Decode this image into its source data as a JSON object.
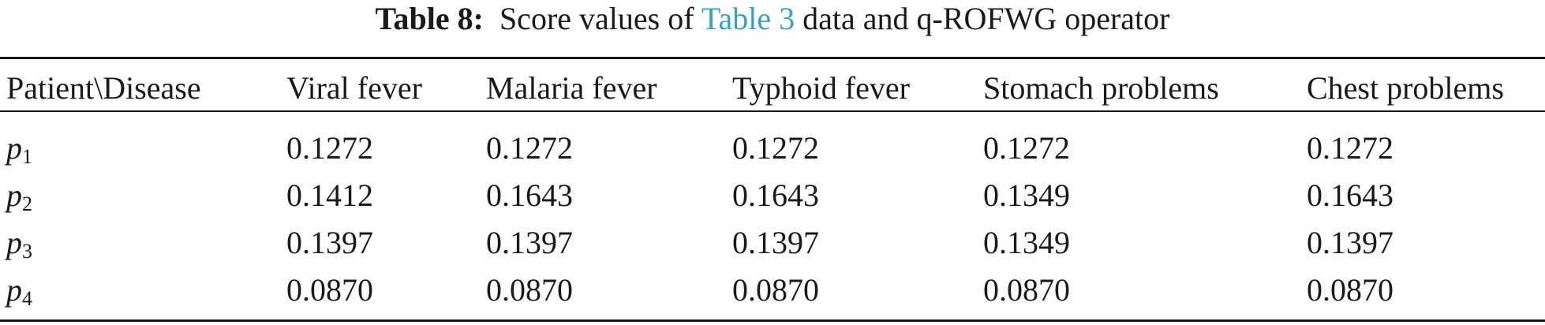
{
  "caption": {
    "label": "Table 8:",
    "text_before": "Score values of",
    "ref_link": "Table 3",
    "text_after": "data and q-ROFWG operator"
  },
  "table": {
    "headers": [
      "Patient\\Disease",
      "Viral fever",
      "Malaria fever",
      "Typhoid fever",
      "Stomach problems",
      "Chest problems"
    ],
    "rows": [
      {
        "patient_var": "p",
        "patient_sub": "1",
        "values": [
          "0.1272",
          "0.1272",
          "0.1272",
          "0.1272",
          "0.1272"
        ]
      },
      {
        "patient_var": "p",
        "patient_sub": "2",
        "values": [
          "0.1412",
          "0.1643",
          "0.1643",
          "0.1349",
          "0.1643"
        ]
      },
      {
        "patient_var": "p",
        "patient_sub": "3",
        "values": [
          "0.1397",
          "0.1397",
          "0.1397",
          "0.1349",
          "0.1397"
        ]
      },
      {
        "patient_var": "p",
        "patient_sub": "4",
        "values": [
          "0.0870",
          "0.0870",
          "0.0870",
          "0.0870",
          "0.0870"
        ]
      }
    ]
  },
  "colors": {
    "text": "#1a1a1a",
    "link": "#3aa0c8"
  }
}
